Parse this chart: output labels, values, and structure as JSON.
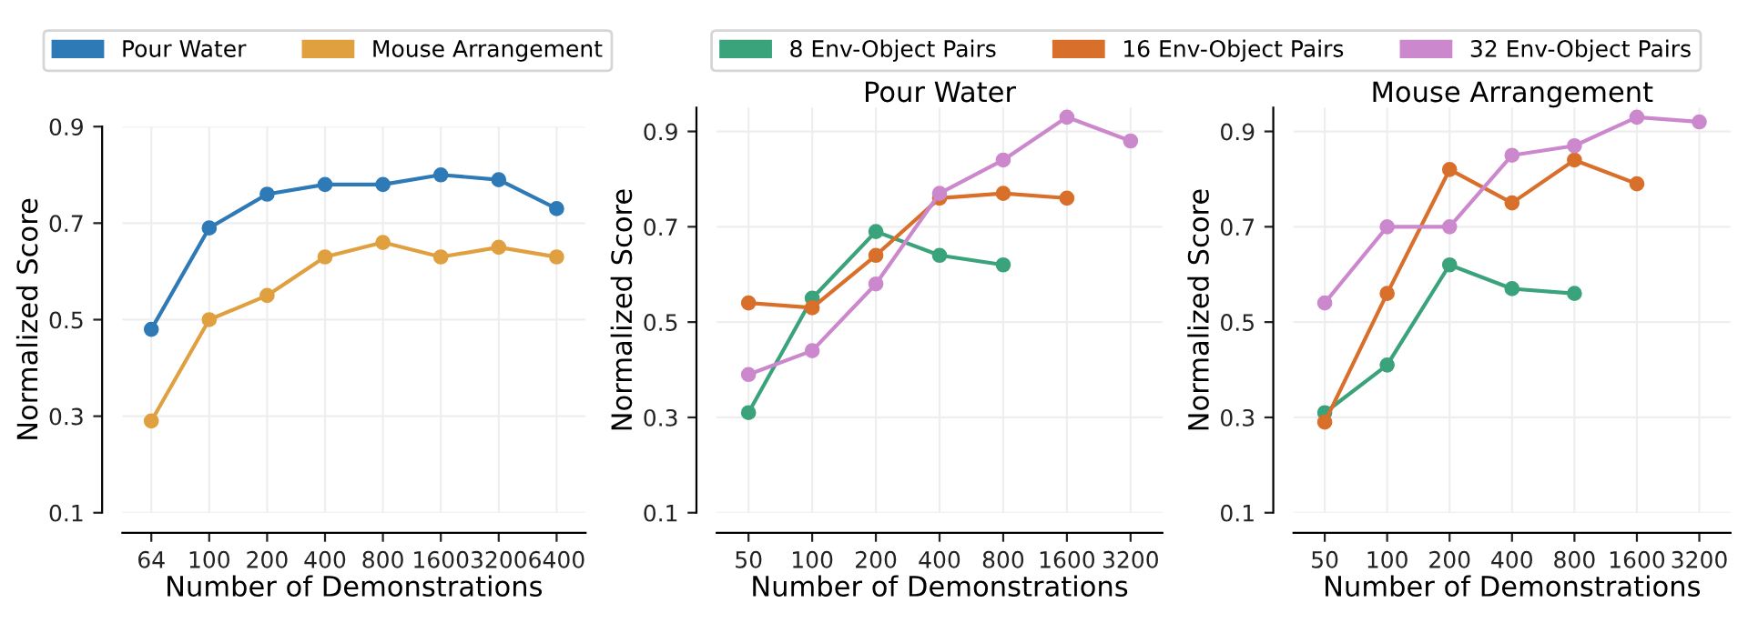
{
  "chart_data": [
    {
      "type": "line",
      "categories": [
        "64",
        "100",
        "200",
        "400",
        "800",
        "1600",
        "3200",
        "6400"
      ],
      "xlabel": "Number of Demonstrations",
      "ylabel": "Normalized Score",
      "ylim": [
        0.1,
        0.9
      ],
      "yticks": [
        0.1,
        0.3,
        0.5,
        0.7,
        0.9
      ],
      "grid": true,
      "legend": "top",
      "marker": "circle",
      "series": [
        {
          "name": "Pour Water",
          "color": "#2e7ab6",
          "values": [
            0.48,
            0.69,
            0.76,
            0.78,
            0.78,
            0.8,
            0.79,
            0.73
          ]
        },
        {
          "name": "Mouse Arrangement",
          "color": "#e0a040",
          "values": [
            0.29,
            0.5,
            0.55,
            0.63,
            0.66,
            0.63,
            0.65,
            0.63
          ]
        }
      ]
    },
    {
      "type": "line",
      "title": "Pour Water",
      "categories": [
        "50",
        "100",
        "200",
        "400",
        "800",
        "1600",
        "3200"
      ],
      "xlabel": "Number of Demonstrations",
      "ylabel": "Normalized Score",
      "ylim": [
        0.1,
        0.95
      ],
      "yticks": [
        0.1,
        0.3,
        0.5,
        0.7,
        0.9
      ],
      "grid": true,
      "legend": "top",
      "marker": "circle",
      "series": [
        {
          "name": "8 Env-Object Pairs",
          "color": "#3aa37c",
          "values": [
            0.31,
            0.55,
            0.69,
            0.64,
            0.62,
            null,
            null
          ]
        },
        {
          "name": "16 Env-Object Pairs",
          "color": "#d86f2a",
          "values": [
            0.54,
            0.53,
            0.64,
            0.76,
            0.77,
            0.76,
            null
          ]
        },
        {
          "name": "32 Env-Object Pairs",
          "color": "#cc88cc",
          "values": [
            0.39,
            0.44,
            0.58,
            0.77,
            0.84,
            0.93,
            0.88
          ]
        }
      ]
    },
    {
      "type": "line",
      "title": "Mouse Arrangement",
      "categories": [
        "50",
        "100",
        "200",
        "400",
        "800",
        "1600",
        "3200"
      ],
      "xlabel": "Number of Demonstrations",
      "ylabel": "Normalized Score",
      "ylim": [
        0.1,
        0.95
      ],
      "yticks": [
        0.1,
        0.3,
        0.5,
        0.7,
        0.9
      ],
      "grid": true,
      "legend": "top",
      "marker": "circle",
      "series": [
        {
          "name": "8 Env-Object Pairs",
          "color": "#3aa37c",
          "values": [
            0.31,
            0.41,
            0.62,
            0.57,
            0.56,
            null,
            null
          ]
        },
        {
          "name": "16 Env-Object Pairs",
          "color": "#d86f2a",
          "values": [
            0.29,
            0.56,
            0.82,
            0.75,
            0.84,
            0.79,
            null
          ]
        },
        {
          "name": "32 Env-Object Pairs",
          "color": "#cc88cc",
          "values": [
            0.54,
            0.7,
            0.7,
            0.85,
            0.87,
            0.93,
            0.92
          ]
        }
      ]
    }
  ]
}
